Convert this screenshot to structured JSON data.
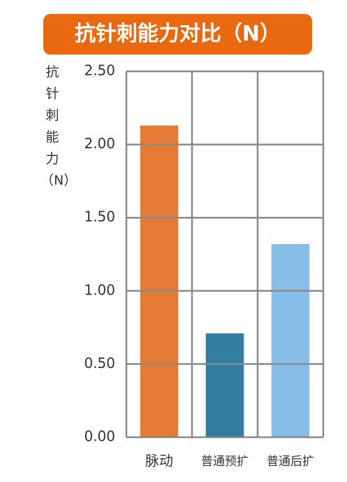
{
  "chart_data": {
    "type": "bar",
    "title": "抗针刺能力对比（N）",
    "y_label": "抗针刺能力（N）",
    "categories": [
      "脉动",
      "普通预扩",
      "普通后扩"
    ],
    "values": [
      2.13,
      0.71,
      1.32
    ],
    "colors": [
      "#e57a35",
      "#317ea1",
      "#86bde9"
    ],
    "ylim": [
      0,
      2.5
    ],
    "yticks": [
      {
        "value": 0,
        "label": "0.00"
      },
      {
        "value": 0.5,
        "label": "0.50"
      },
      {
        "value": 1,
        "label": "1.00"
      },
      {
        "value": 1.5,
        "label": "1.50"
      },
      {
        "value": 2,
        "label": "2.00"
      },
      {
        "value": 2.5,
        "label": "2.50"
      }
    ],
    "grid": true
  }
}
